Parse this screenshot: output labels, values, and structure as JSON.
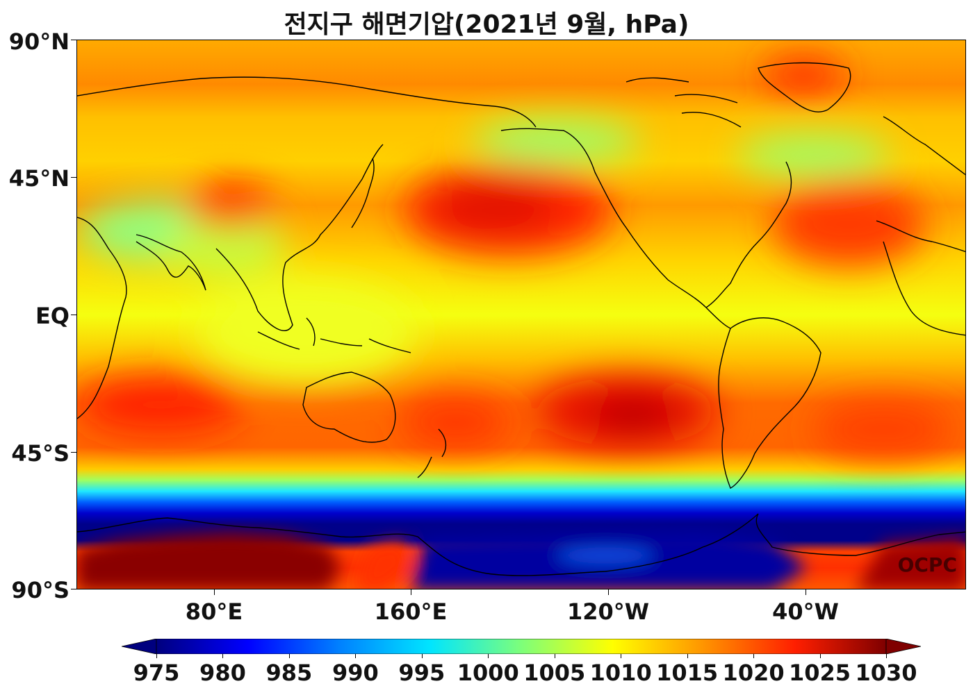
{
  "title": "전지구 해면기압(2021년 9월, hPa)",
  "watermark": "OCPC",
  "lat_labels": [
    "90°N",
    "45°N",
    "EQ",
    "45°S",
    "90°S"
  ],
  "lon_labels": [
    "80°E",
    "160°E",
    "120°W",
    "40°W"
  ],
  "colorbar": {
    "ticks": [
      "975",
      "980",
      "985",
      "990",
      "995",
      "1000",
      "1005",
      "1010",
      "1015",
      "1020",
      "1025",
      "1030"
    ],
    "colors": [
      "#00007f",
      "#0000ff",
      "#0080ff",
      "#00e5ff",
      "#7dff7a",
      "#ffff00",
      "#ff9400",
      "#ff1f00",
      "#7f0000"
    ],
    "extend": "both"
  }
}
